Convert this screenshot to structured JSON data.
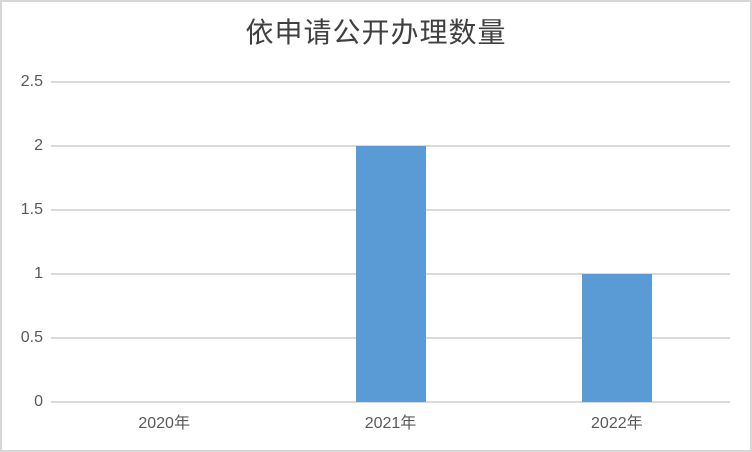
{
  "title": "依申请公开办理数量",
  "colors": {
    "bar": "#5b9bd5",
    "gridline": "#dadada",
    "axis_text": "#595959",
    "title_text": "#404040",
    "frame_border": "#d6d6d6",
    "background": "#ffffff"
  },
  "chart_data": {
    "type": "bar",
    "title": "依申请公开办理数量",
    "categories": [
      "2020年",
      "2021年",
      "2022年"
    ],
    "values": [
      0,
      2,
      1
    ],
    "xlabel": "",
    "ylabel": "",
    "ylim": [
      0,
      2.5
    ],
    "yticks": [
      0,
      0.5,
      1,
      1.5,
      2,
      2.5
    ],
    "ytick_labels": [
      "0",
      "0.5",
      "1",
      "1.5",
      "2",
      "2.5"
    ],
    "grid": true,
    "legend": false,
    "bar_color": "#5b9bd5"
  }
}
